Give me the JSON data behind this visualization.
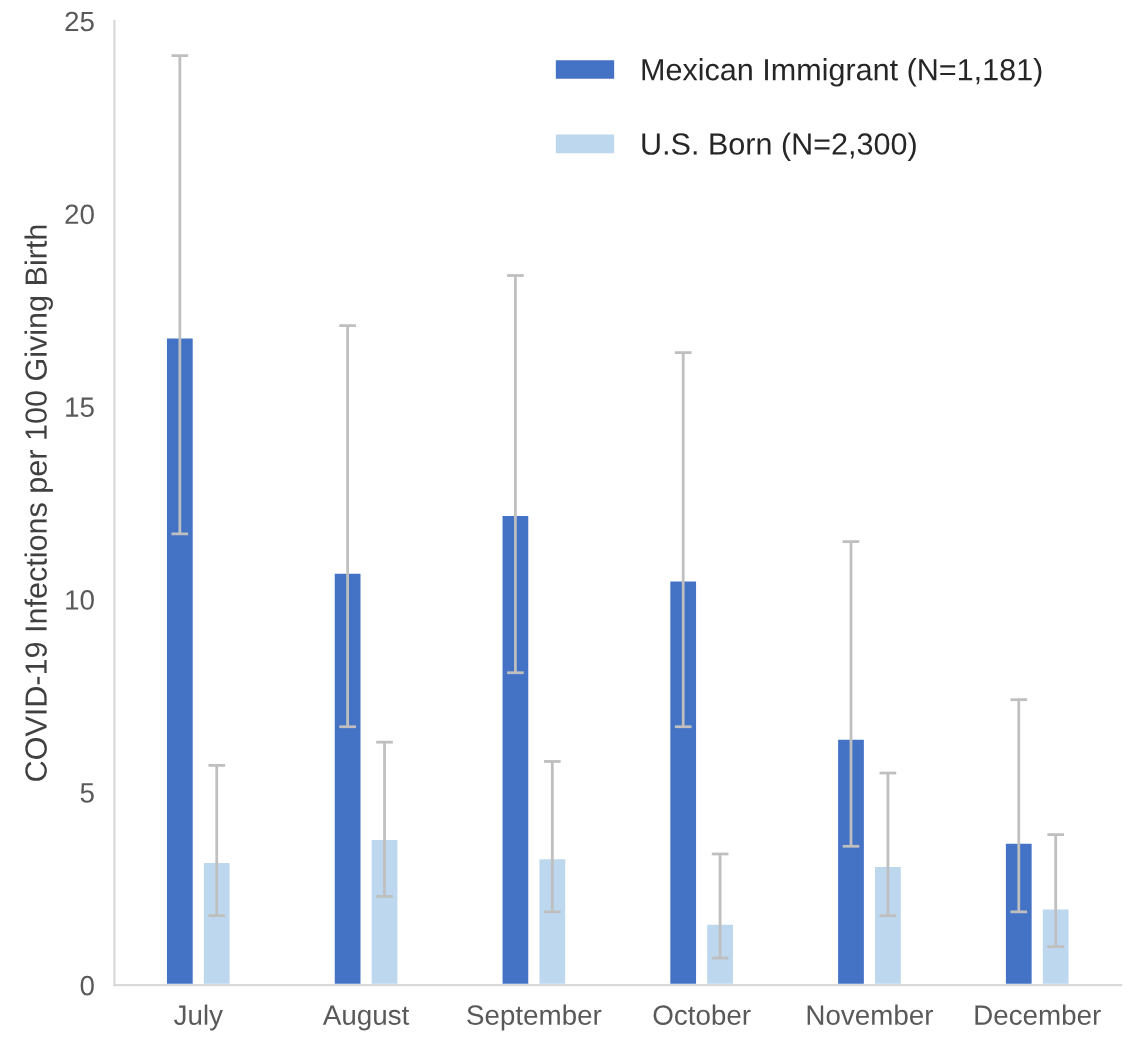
{
  "chart_data": {
    "type": "bar",
    "ylabel": "COVID-19 Infections per 100 Giving Birth",
    "categories": [
      "July",
      "August",
      "September",
      "October",
      "November",
      "December"
    ],
    "series": [
      {
        "name": "Mexican Immigrant (N=1,181)",
        "color": "#4472c4",
        "values": [
          16.8,
          10.7,
          12.2,
          10.5,
          6.4,
          3.7
        ],
        "errors": [
          [
            11.7,
            24.1
          ],
          [
            6.7,
            17.1
          ],
          [
            8.1,
            18.4
          ],
          [
            6.7,
            16.4
          ],
          [
            3.6,
            11.5
          ],
          [
            1.9,
            7.4
          ]
        ]
      },
      {
        "name": "U.S. Born (N=2,300)",
        "color": "#bdd7ee",
        "values": [
          3.2,
          3.8,
          3.3,
          1.6,
          3.1,
          2.0
        ],
        "errors": [
          [
            1.8,
            5.7
          ],
          [
            2.3,
            6.3
          ],
          [
            1.9,
            5.8
          ],
          [
            0.7,
            3.4
          ],
          [
            1.8,
            5.5
          ],
          [
            1.0,
            3.9
          ]
        ]
      }
    ],
    "ylim": [
      0,
      25
    ],
    "yticks": [
      0,
      5,
      10,
      15,
      20,
      25
    ],
    "grid": false,
    "legend": "top right"
  }
}
